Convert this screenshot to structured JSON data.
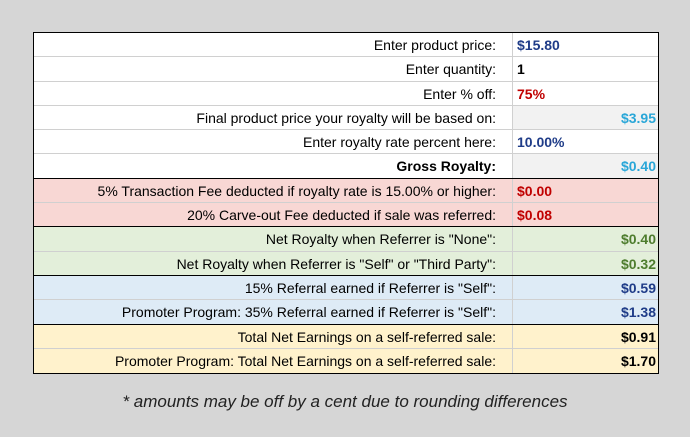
{
  "rows": [
    {
      "label": "Enter product price:",
      "value": "$15.80"
    },
    {
      "label": "Enter quantity:",
      "value": "1"
    },
    {
      "label": "Enter % off:",
      "value": "75%"
    },
    {
      "label": "Final product price your royalty will be based on:",
      "value": "$3.95"
    },
    {
      "label": "Enter royalty rate percent here:",
      "value": "10.00%"
    },
    {
      "label": "Gross Royalty:",
      "value": "$0.40"
    },
    {
      "label": "5% Transaction Fee deducted if royalty rate is 15.00% or higher:",
      "value": "$0.00"
    },
    {
      "label": "20% Carve-out Fee deducted if sale was referred:",
      "value": "$0.08"
    },
    {
      "label": "Net Royalty when Referrer is \"None\":",
      "value": "$0.40"
    },
    {
      "label": "Net Royalty when Referrer is \"Self\" or \"Third Party\":",
      "value": "$0.32"
    },
    {
      "label": "15% Referral earned if Referrer is \"Self\":",
      "value": "$0.59"
    },
    {
      "label": "Promoter Program: 35% Referral earned if Referrer is \"Self\":",
      "value": "$1.38"
    },
    {
      "label": "Total Net Earnings on a self-referred sale:",
      "value": "$0.91"
    },
    {
      "label": "Promoter Program: Total Net Earnings on a self-referred sale:",
      "value": "$1.70"
    }
  ],
  "footnote": "* amounts may be off by a cent due to rounding differences"
}
